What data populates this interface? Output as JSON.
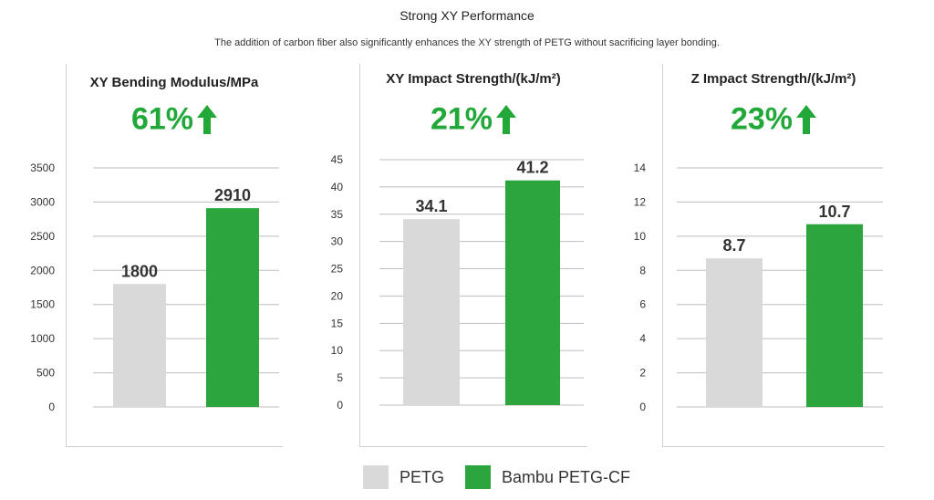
{
  "header": {
    "title": "Strong XY Performance",
    "subtitle": "The addition of carbon fiber also significantly enhances the XY strength of PETG without sacrificing layer bonding."
  },
  "colors": {
    "petg": "#d9d9d9",
    "petg_cf": "#2ca63c",
    "accent": "#22a839",
    "grid": "#bdbdbd"
  },
  "legend": [
    {
      "label": "PETG",
      "color": "#d9d9d9"
    },
    {
      "label": "Bambu PETG-CF",
      "color": "#2ca63c"
    }
  ],
  "chart_data": [
    {
      "type": "bar",
      "title": "XY Bending Modulus/MPa",
      "increase": "61%",
      "categories": [
        "PETG",
        "Bambu PETG-CF"
      ],
      "values": [
        1800,
        2910
      ],
      "value_labels": [
        "1800",
        "2910"
      ],
      "ylim": [
        0,
        3500
      ],
      "yticks": [
        0,
        500,
        1000,
        1500,
        2000,
        2500,
        3000,
        3500
      ],
      "grid": true
    },
    {
      "type": "bar",
      "title": "XY Impact Strength/(kJ/m²)",
      "increase": "21%",
      "categories": [
        "PETG",
        "Bambu PETG-CF"
      ],
      "values": [
        34.1,
        41.2
      ],
      "value_labels": [
        "34.1",
        "41.2"
      ],
      "ylim": [
        0,
        45
      ],
      "yticks": [
        0,
        5,
        10,
        15,
        20,
        25,
        30,
        35,
        40,
        45
      ],
      "grid": true
    },
    {
      "type": "bar",
      "title": "Z Impact Strength/(kJ/m²)",
      "increase": "23%",
      "categories": [
        "PETG",
        "Bambu PETG-CF"
      ],
      "values": [
        8.7,
        10.7
      ],
      "value_labels": [
        "8.7",
        "10.7"
      ],
      "ylim": [
        0,
        14
      ],
      "yticks": [
        0,
        2,
        4,
        6,
        8,
        10,
        12,
        14
      ],
      "grid": true
    }
  ]
}
